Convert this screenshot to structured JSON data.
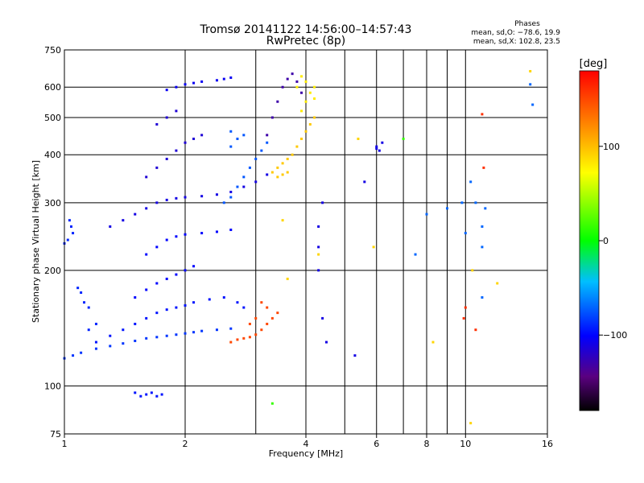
{
  "chart_data": {
    "type": "scatter",
    "title": "Tromsø 20141122 14:56:00–14:57:43",
    "subtitle": "RwPretec (8p)",
    "xlabel": "Frequency [MHz]",
    "ylabel": "Stationary phase Virtual Height [km]",
    "x_scale": "log",
    "y_scale": "log",
    "xlim": [
      1,
      16
    ],
    "ylim": [
      75,
      750
    ],
    "x_ticks": [
      1,
      2,
      4,
      6,
      8,
      10,
      16
    ],
    "x_tick_labels": [
      "1",
      "2",
      "4",
      "6",
      "8",
      "10",
      "16"
    ],
    "x_minor_gridlines": [
      3,
      5,
      7,
      9
    ],
    "y_ticks": [
      75,
      100,
      200,
      300,
      400,
      500,
      600,
      750
    ],
    "y_tick_labels": [
      "75",
      "100",
      "200",
      "300",
      "400",
      "500",
      "600",
      "750"
    ],
    "grid": true,
    "stats": {
      "title": "Phases",
      "line_o": "mean, sd,O: −78.6, 19.9",
      "line_x": "mean, sd,X: 102.8, 23.5"
    },
    "colorbar": {
      "label": "[deg]",
      "range": [
        -180,
        180
      ],
      "ticks": [
        100,
        0,
        -100
      ],
      "tick_labels": [
        "100",
        "0",
        "−100"
      ]
    },
    "series": [
      {
        "name": "",
        "color_phase": -85,
        "points": [
          [
            1.0,
            118
          ],
          [
            1.05,
            120
          ],
          [
            1.1,
            122
          ],
          [
            1.2,
            125
          ],
          [
            1.3,
            127
          ],
          [
            1.4,
            129
          ],
          [
            1.5,
            131
          ],
          [
            1.6,
            133
          ],
          [
            1.7,
            134
          ],
          [
            1.8,
            135
          ],
          [
            1.9,
            136
          ],
          [
            2.0,
            137
          ],
          [
            2.1,
            138
          ],
          [
            2.2,
            139
          ],
          [
            2.4,
            140
          ],
          [
            2.6,
            141
          ]
        ]
      },
      {
        "name": "",
        "color_phase": -95,
        "points": [
          [
            1.2,
            130
          ],
          [
            1.3,
            135
          ],
          [
            1.4,
            140
          ],
          [
            1.5,
            145
          ],
          [
            1.6,
            150
          ],
          [
            1.7,
            155
          ],
          [
            1.8,
            158
          ],
          [
            1.9,
            160
          ],
          [
            2.0,
            162
          ],
          [
            2.1,
            165
          ],
          [
            2.3,
            168
          ],
          [
            2.5,
            170
          ],
          [
            2.7,
            165
          ],
          [
            2.8,
            160
          ]
        ]
      },
      {
        "name": "",
        "color_phase": -100,
        "points": [
          [
            1.5,
            170
          ],
          [
            1.6,
            178
          ],
          [
            1.7,
            185
          ],
          [
            1.8,
            190
          ],
          [
            1.9,
            195
          ],
          [
            2.0,
            200
          ],
          [
            2.1,
            205
          ],
          [
            1.6,
            220
          ],
          [
            1.7,
            230
          ],
          [
            1.8,
            240
          ],
          [
            1.9,
            245
          ],
          [
            2.0,
            248
          ],
          [
            2.2,
            250
          ],
          [
            2.4,
            252
          ],
          [
            2.6,
            255
          ]
        ]
      },
      {
        "name": "",
        "color_phase": -110,
        "points": [
          [
            1.3,
            260
          ],
          [
            1.4,
            270
          ],
          [
            1.5,
            280
          ],
          [
            1.6,
            290
          ],
          [
            1.7,
            300
          ],
          [
            1.8,
            305
          ],
          [
            1.9,
            308
          ],
          [
            2.0,
            310
          ],
          [
            2.2,
            312
          ],
          [
            2.4,
            315
          ],
          [
            2.6,
            320
          ],
          [
            2.8,
            330
          ],
          [
            3.0,
            340
          ],
          [
            3.2,
            355
          ]
        ]
      },
      {
        "name": "",
        "color_phase": -75,
        "points": [
          [
            2.5,
            300
          ],
          [
            2.6,
            310
          ],
          [
            2.7,
            330
          ],
          [
            2.8,
            350
          ],
          [
            2.9,
            370
          ],
          [
            3.0,
            390
          ],
          [
            3.1,
            410
          ],
          [
            3.2,
            430
          ],
          [
            2.6,
            420
          ],
          [
            2.7,
            440
          ],
          [
            2.8,
            450
          ],
          [
            2.6,
            460
          ]
        ]
      },
      {
        "name": "",
        "color_phase": -115,
        "points": [
          [
            1.6,
            350
          ],
          [
            1.7,
            370
          ],
          [
            1.8,
            390
          ],
          [
            1.9,
            410
          ],
          [
            2.0,
            430
          ],
          [
            2.1,
            440
          ],
          [
            2.2,
            450
          ],
          [
            1.7,
            480
          ],
          [
            1.8,
            500
          ],
          [
            1.9,
            520
          ]
        ]
      },
      {
        "name": "",
        "color_phase": -105,
        "points": [
          [
            1.8,
            590
          ],
          [
            1.9,
            600
          ],
          [
            2.0,
            610
          ],
          [
            2.1,
            615
          ],
          [
            2.2,
            620
          ],
          [
            2.4,
            625
          ],
          [
            2.5,
            630
          ],
          [
            2.6,
            635
          ]
        ]
      },
      {
        "name": "",
        "color_phase": -130,
        "points": [
          [
            3.2,
            450
          ],
          [
            3.3,
            500
          ],
          [
            3.4,
            550
          ],
          [
            3.5,
            600
          ],
          [
            3.6,
            630
          ],
          [
            3.7,
            650
          ],
          [
            3.8,
            620
          ],
          [
            3.9,
            580
          ]
        ]
      },
      {
        "name": "",
        "color_phase": 95,
        "points": [
          [
            3.3,
            360
          ],
          [
            3.4,
            370
          ],
          [
            3.5,
            380
          ],
          [
            3.6,
            390
          ],
          [
            3.7,
            400
          ],
          [
            3.8,
            420
          ],
          [
            3.9,
            440
          ],
          [
            4.0,
            460
          ],
          [
            4.1,
            480
          ],
          [
            4.2,
            500
          ],
          [
            3.6,
            360
          ],
          [
            3.5,
            355
          ],
          [
            3.4,
            350
          ]
        ]
      },
      {
        "name": "",
        "color_phase": 80,
        "points": [
          [
            3.9,
            520
          ],
          [
            4.0,
            550
          ],
          [
            4.1,
            580
          ],
          [
            4.2,
            600
          ],
          [
            4.0,
            620
          ],
          [
            3.9,
            640
          ],
          [
            3.8,
            600
          ],
          [
            4.2,
            560
          ]
        ]
      },
      {
        "name": "",
        "color_phase": 150,
        "points": [
          [
            2.6,
            130
          ],
          [
            2.7,
            132
          ],
          [
            2.8,
            133
          ],
          [
            2.9,
            134
          ],
          [
            3.0,
            136
          ],
          [
            3.1,
            140
          ],
          [
            3.2,
            145
          ],
          [
            3.3,
            150
          ],
          [
            3.4,
            155
          ],
          [
            3.2,
            160
          ],
          [
            3.1,
            165
          ],
          [
            3.0,
            150
          ],
          [
            2.9,
            145
          ]
        ]
      },
      {
        "name": "",
        "color_phase": -90,
        "points": [
          [
            1.0,
            235
          ],
          [
            1.02,
            240
          ],
          [
            1.05,
            250
          ],
          [
            1.04,
            260
          ],
          [
            1.03,
            270
          ],
          [
            1.08,
            180
          ],
          [
            1.1,
            175
          ],
          [
            1.12,
            165
          ],
          [
            1.15,
            160
          ],
          [
            1.15,
            140
          ],
          [
            1.2,
            145
          ]
        ]
      },
      {
        "name": "",
        "color_phase": -95,
        "points": [
          [
            1.5,
            96
          ],
          [
            1.55,
            94
          ],
          [
            1.6,
            95
          ],
          [
            1.65,
            96
          ],
          [
            1.7,
            94
          ],
          [
            1.75,
            95
          ]
        ]
      },
      {
        "name": "",
        "color_phase": -110,
        "points": [
          [
            4.3,
            200
          ],
          [
            4.3,
            230
          ],
          [
            4.3,
            260
          ],
          [
            4.4,
            300
          ],
          [
            4.4,
            150
          ],
          [
            4.5,
            130
          ],
          [
            5.3,
            120
          ],
          [
            5.6,
            340
          ],
          [
            6.0,
            420
          ],
          [
            6.2,
            430
          ],
          [
            6.1,
            410
          ],
          [
            6.0,
            415
          ]
        ]
      },
      {
        "name": "",
        "color_phase": -70,
        "points": [
          [
            7.5,
            220
          ],
          [
            8.0,
            280
          ],
          [
            9.0,
            290
          ],
          [
            9.8,
            300
          ],
          [
            10.0,
            250
          ],
          [
            10.3,
            340
          ],
          [
            10.6,
            300
          ],
          [
            11.0,
            230
          ],
          [
            11.0,
            260
          ],
          [
            11.2,
            290
          ],
          [
            11.0,
            170
          ],
          [
            14.5,
            610
          ],
          [
            14.7,
            540
          ]
        ]
      },
      {
        "name": "",
        "color_phase": 160,
        "points": [
          [
            9.9,
            150
          ],
          [
            10.0,
            160
          ],
          [
            11.0,
            510
          ],
          [
            11.1,
            370
          ],
          [
            10.6,
            140
          ]
        ]
      },
      {
        "name": "",
        "color_phase": 90,
        "points": [
          [
            3.5,
            270
          ],
          [
            3.6,
            190
          ],
          [
            4.3,
            220
          ],
          [
            5.4,
            440
          ],
          [
            5.9,
            230
          ],
          [
            8.3,
            130
          ],
          [
            10.4,
            200
          ],
          [
            10.3,
            80
          ],
          [
            12.0,
            185
          ],
          [
            14.5,
            660
          ]
        ]
      },
      {
        "name": "",
        "color_phase": 15,
        "points": [
          [
            3.3,
            90
          ],
          [
            7.0,
            440
          ]
        ]
      }
    ]
  }
}
